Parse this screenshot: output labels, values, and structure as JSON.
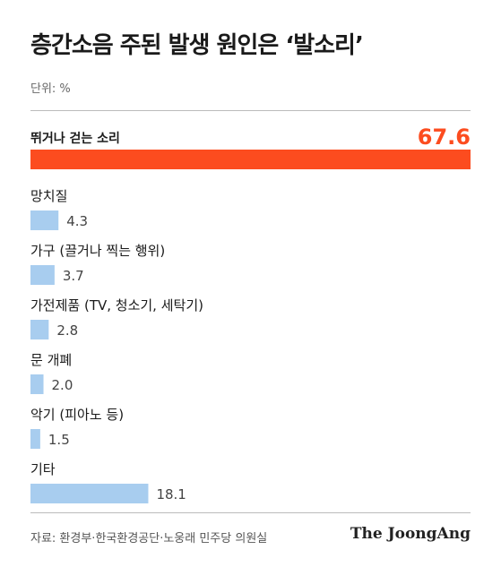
{
  "title": "층간소음 주된 발생 원인은 ‘발소리’",
  "unit_label": "단위: %",
  "source": "자료: 환경부·한국환경공단·노웅래 민주당 의원실",
  "logo_text": "The JoongAng",
  "colors": {
    "highlight_bar": "#fc4c1f",
    "highlight_value": "#fc4c1f",
    "bar": "#a8cdef",
    "value": "#444444",
    "label": "#1a1a1a"
  },
  "chart_data": {
    "type": "bar",
    "orientation": "horizontal",
    "title": "층간소음 주된 발생 원인은 ‘발소리’",
    "unit": "%",
    "categories": [
      "뛰거나 걷는 소리",
      "망치질",
      "가구 (끌거나 찍는 행위)",
      "가전제품 (TV, 청소기, 세탁기)",
      "문 개폐",
      "악기 (피아노 등)",
      "기타"
    ],
    "values": [
      67.6,
      4.3,
      3.7,
      2.8,
      2.0,
      1.5,
      18.1
    ],
    "value_labels": [
      "67.6",
      "4.3",
      "3.7",
      "2.8",
      "2.0",
      "1.5",
      "18.1"
    ],
    "highlight_index": 0,
    "xlim": [
      0,
      67.6
    ],
    "grid": false,
    "legend": "none"
  }
}
